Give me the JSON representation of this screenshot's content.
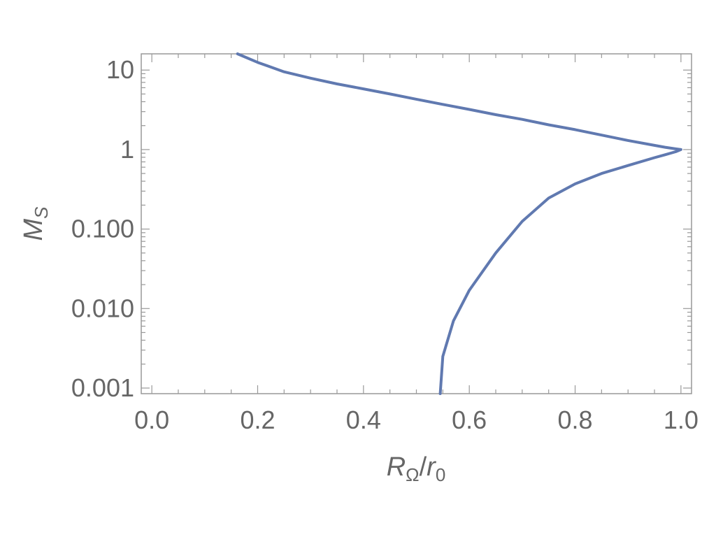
{
  "chart_data": {
    "type": "line",
    "title": "",
    "xlabel": {
      "main": "R",
      "main_sub": "Ω",
      "slash": "/",
      "denom": "r",
      "denom_sub": "0"
    },
    "ylabel": {
      "main": "M",
      "sub": "S"
    },
    "x_ticks": [
      {
        "value": 0.0,
        "label": "0.0"
      },
      {
        "value": 0.2,
        "label": "0.2"
      },
      {
        "value": 0.4,
        "label": "0.4"
      },
      {
        "value": 0.6,
        "label": "0.6"
      },
      {
        "value": 0.8,
        "label": "0.8"
      },
      {
        "value": 1.0,
        "label": "1.0"
      }
    ],
    "y_ticks": [
      {
        "value": 10,
        "label": "10"
      },
      {
        "value": 1,
        "label": "1"
      },
      {
        "value": 0.1,
        "label": "0.100"
      },
      {
        "value": 0.01,
        "label": "0.010"
      },
      {
        "value": 0.001,
        "label": "0.001"
      }
    ],
    "xlim": [
      -0.02,
      1.02
    ],
    "ylim": [
      0.00085,
      16
    ],
    "y_scale": "log",
    "grid": false,
    "series": [
      {
        "color": "#6079b0",
        "x": [
          0.162,
          0.2,
          0.25,
          0.3,
          0.35,
          0.4,
          0.45,
          0.5,
          0.55,
          0.6,
          0.65,
          0.7,
          0.75,
          0.8,
          0.85,
          0.9,
          0.95,
          0.97,
          0.99,
          1.0,
          0.99,
          0.97,
          0.95,
          0.9,
          0.85,
          0.8,
          0.75,
          0.7,
          0.65,
          0.6,
          0.57,
          0.55,
          0.545
        ],
        "y": [
          16,
          12.5,
          9.5,
          7.9,
          6.7,
          5.8,
          5.0,
          4.3,
          3.7,
          3.2,
          2.75,
          2.4,
          2.05,
          1.78,
          1.52,
          1.3,
          1.13,
          1.07,
          1.02,
          1.0,
          0.94,
          0.86,
          0.79,
          0.63,
          0.5,
          0.37,
          0.245,
          0.125,
          0.05,
          0.017,
          0.007,
          0.0025,
          0.00085
        ]
      }
    ]
  }
}
